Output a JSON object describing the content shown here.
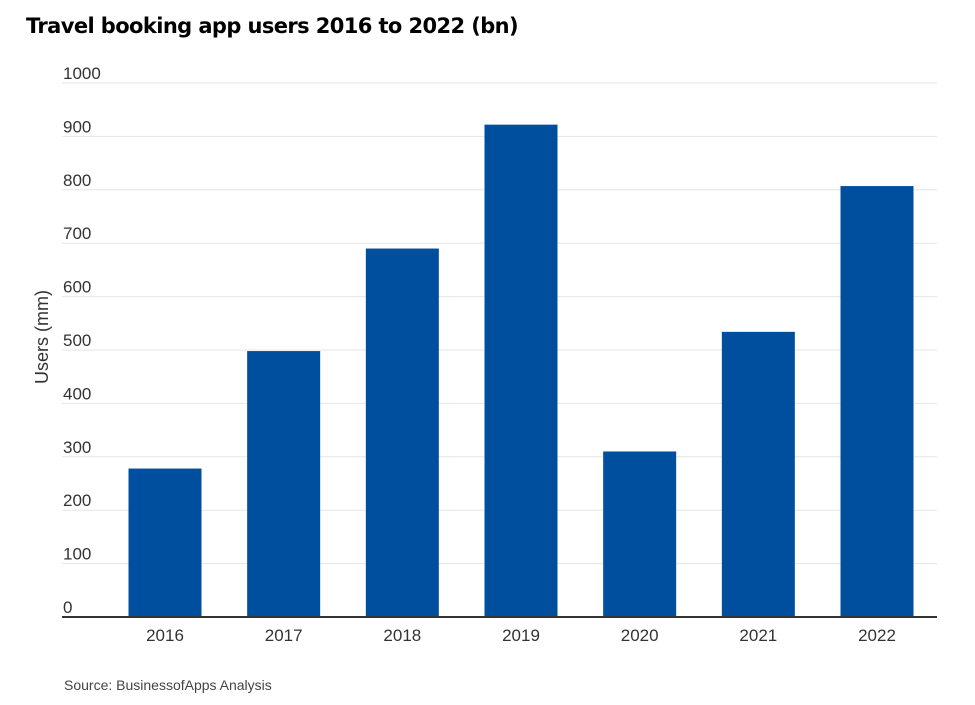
{
  "source": "Source: BusinessofApps Analysis",
  "chart_data": {
    "type": "bar",
    "title": "Travel booking app users 2016 to 2022 (bn)",
    "xlabel": "",
    "ylabel": "Users (mm)",
    "categories": [
      "2016",
      "2017",
      "2018",
      "2019",
      "2020",
      "2021",
      "2022"
    ],
    "values": [
      278,
      498,
      690,
      922,
      310,
      534,
      807
    ],
    "ylim": [
      0,
      1000
    ],
    "yticks": [
      0,
      100,
      200,
      300,
      400,
      500,
      600,
      700,
      800,
      900,
      1000
    ],
    "grid": true,
    "legend": "none",
    "colors": {
      "bar": "#004f9f",
      "grid": "#e6e6e6",
      "axis": "#333333"
    }
  }
}
